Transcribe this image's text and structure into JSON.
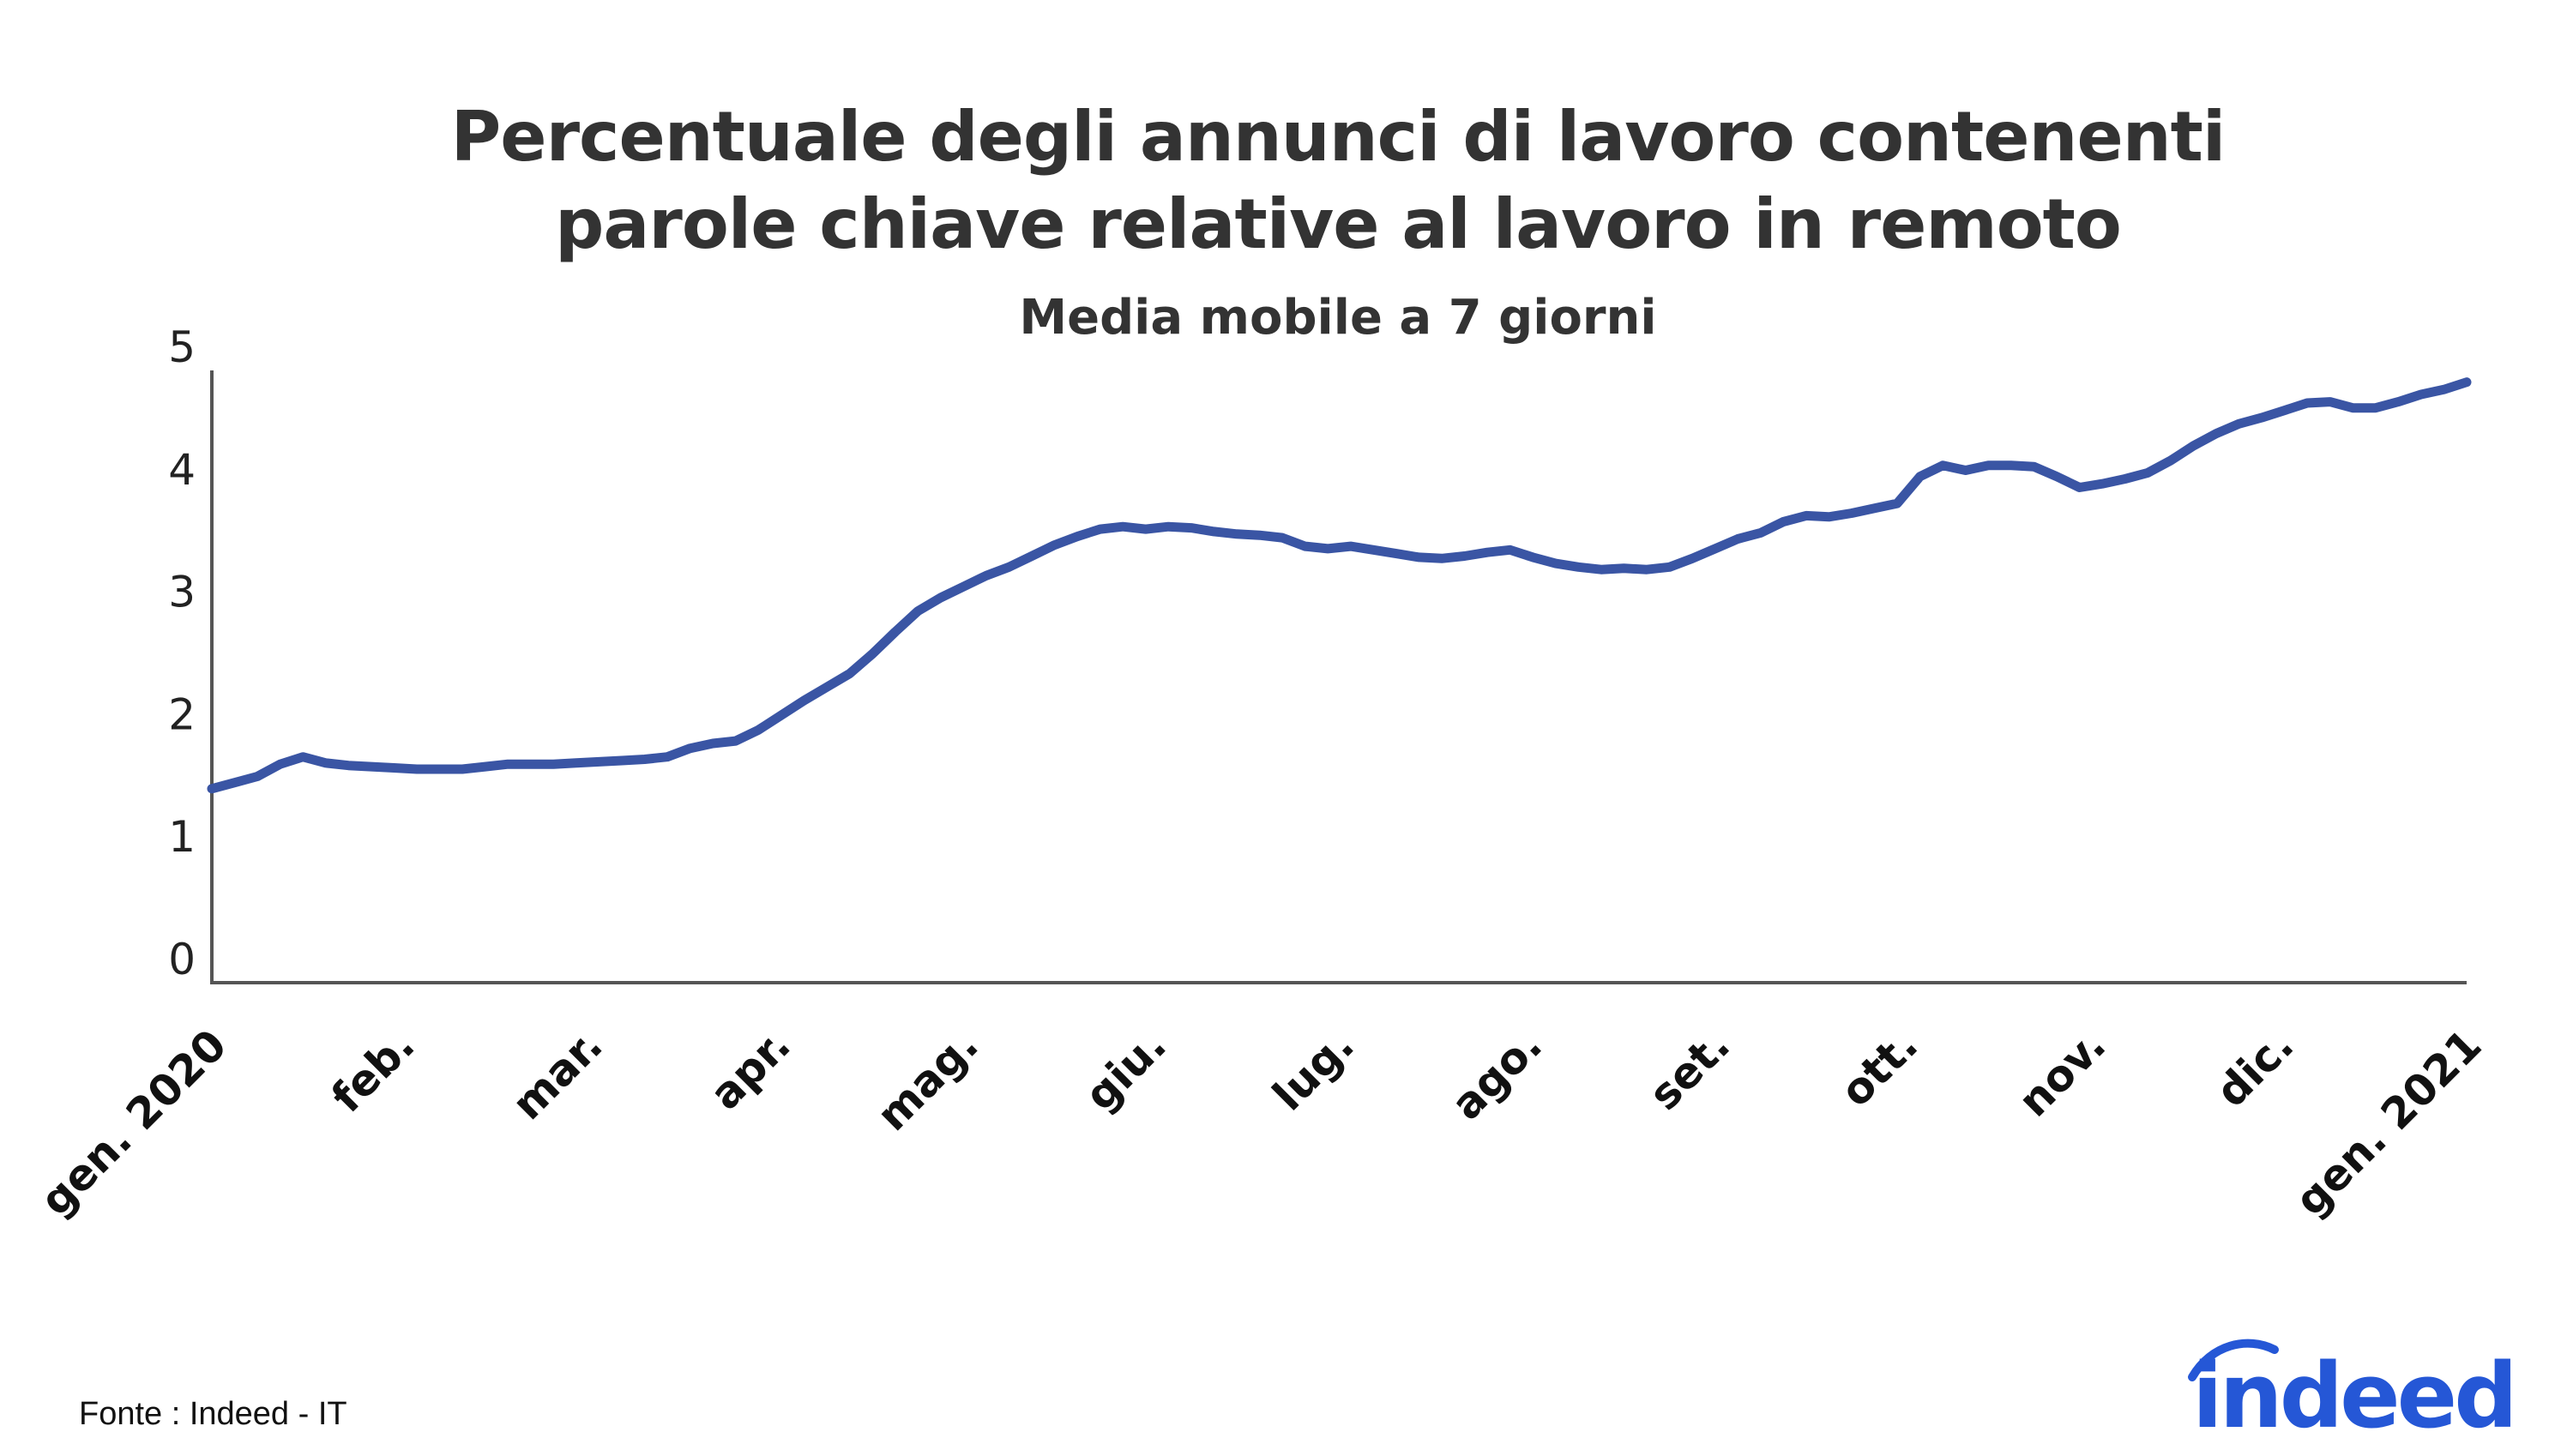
{
  "chart_data": {
    "type": "line",
    "title": "Percentuale degli annunci di lavoro contenenti parole chiave relative al lavoro in remoto",
    "title_lines": [
      "Percentuale degli annunci di lavoro contenenti",
      "parole chiave relative al lavoro in remoto"
    ],
    "subtitle": "Media mobile a 7 giorni",
    "xlabel": "",
    "ylabel": "",
    "ylim": [
      0,
      5
    ],
    "y_ticks": [
      "0",
      "1",
      "2",
      "3",
      "4",
      "5"
    ],
    "x_tick_labels": [
      "gen. 2020",
      "feb.",
      "mar.",
      "apr.",
      "mag.",
      "giu.",
      "lug.",
      "ago.",
      "set.",
      "ott.",
      "nov.",
      "dic.",
      "gen. 2021"
    ],
    "grid": false,
    "line_color": "#3a55a4",
    "series": [
      {
        "name": "",
        "points": [
          [
            0,
            1.57
          ],
          [
            5,
            1.62
          ],
          [
            10,
            1.67
          ],
          [
            15,
            1.77
          ],
          [
            20,
            1.83
          ],
          [
            25,
            1.78
          ],
          [
            30,
            1.76
          ],
          [
            35,
            1.75
          ],
          [
            40,
            1.74
          ],
          [
            45,
            1.73
          ],
          [
            50,
            1.73
          ],
          [
            55,
            1.73
          ],
          [
            60,
            1.75
          ],
          [
            65,
            1.77
          ],
          [
            70,
            1.77
          ],
          [
            75,
            1.77
          ],
          [
            80,
            1.78
          ],
          [
            85,
            1.79
          ],
          [
            90,
            1.8
          ],
          [
            95,
            1.81
          ],
          [
            100,
            1.83
          ],
          [
            105,
            1.9
          ],
          [
            110,
            1.94
          ],
          [
            115,
            1.96
          ],
          [
            120,
            2.05
          ],
          [
            125,
            2.17
          ],
          [
            130,
            2.29
          ],
          [
            135,
            2.4
          ],
          [
            140,
            2.51
          ],
          [
            145,
            2.67
          ],
          [
            150,
            2.85
          ],
          [
            155,
            3.02
          ],
          [
            160,
            3.13
          ],
          [
            165,
            3.22
          ],
          [
            170,
            3.31
          ],
          [
            175,
            3.38
          ],
          [
            180,
            3.47
          ],
          [
            185,
            3.56
          ],
          [
            190,
            3.63
          ],
          [
            195,
            3.69
          ],
          [
            200,
            3.71
          ],
          [
            205,
            3.69
          ],
          [
            210,
            3.71
          ],
          [
            215,
            3.7
          ],
          [
            220,
            3.67
          ],
          [
            225,
            3.65
          ],
          [
            230,
            3.64
          ],
          [
            235,
            3.62
          ],
          [
            240,
            3.55
          ],
          [
            245,
            3.53
          ],
          [
            250,
            3.55
          ],
          [
            255,
            3.52
          ],
          [
            260,
            3.49
          ],
          [
            265,
            3.46
          ],
          [
            270,
            3.45
          ],
          [
            275,
            3.47
          ],
          [
            280,
            3.5
          ],
          [
            285,
            3.52
          ],
          [
            290,
            3.46
          ],
          [
            295,
            3.41
          ],
          [
            300,
            3.38
          ],
          [
            305,
            3.36
          ],
          [
            310,
            3.37
          ],
          [
            315,
            3.36
          ],
          [
            320,
            3.38
          ],
          [
            325,
            3.45
          ],
          [
            330,
            3.53
          ],
          [
            335,
            3.61
          ],
          [
            340,
            3.66
          ],
          [
            345,
            3.75
          ],
          [
            350,
            3.8
          ],
          [
            355,
            3.79
          ],
          [
            360,
            3.82
          ],
          [
            365,
            3.86
          ],
          [
            370,
            3.9
          ],
          [
            375,
            4.12
          ],
          [
            380,
            4.21
          ],
          [
            385,
            4.17
          ],
          [
            390,
            4.21
          ],
          [
            395,
            4.21
          ],
          [
            400,
            4.2
          ],
          [
            405,
            4.12
          ],
          [
            410,
            4.03
          ],
          [
            415,
            4.06
          ],
          [
            420,
            4.1
          ],
          [
            425,
            4.15
          ],
          [
            430,
            4.25
          ],
          [
            435,
            4.37
          ],
          [
            440,
            4.47
          ],
          [
            445,
            4.55
          ],
          [
            450,
            4.6
          ],
          [
            455,
            4.66
          ],
          [
            460,
            4.72
          ],
          [
            465,
            4.73
          ],
          [
            470,
            4.68
          ],
          [
            475,
            4.68
          ],
          [
            480,
            4.73
          ],
          [
            485,
            4.79
          ],
          [
            490,
            4.83
          ],
          [
            495,
            4.89
          ]
        ]
      }
    ],
    "source": "Fonte : Indeed - IT"
  },
  "branding": {
    "logo_text": "indeed",
    "logo_color": "#2557d6"
  }
}
